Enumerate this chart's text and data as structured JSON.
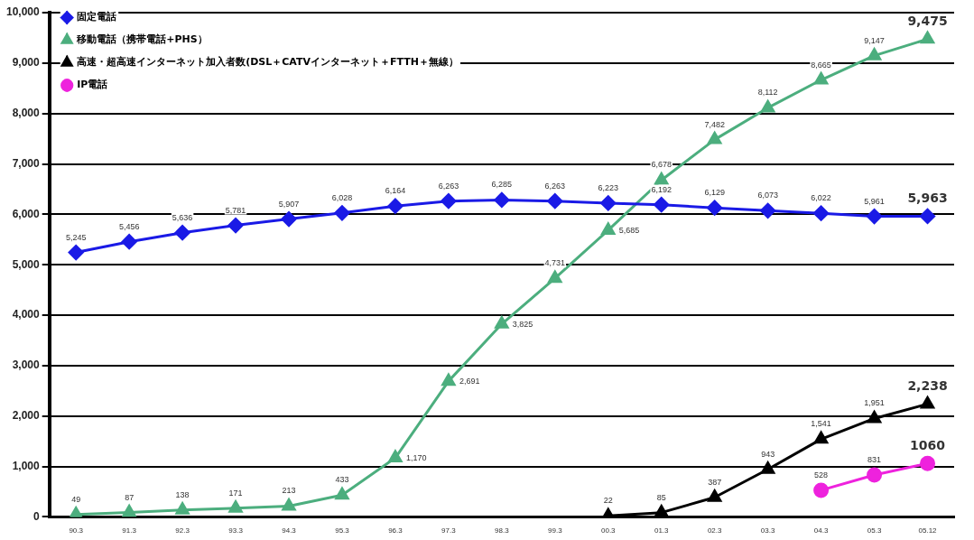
{
  "chart_data": {
    "type": "line",
    "categories": [
      "90.3",
      "91.3",
      "92.3",
      "93.3",
      "94.3",
      "95.3",
      "96.3",
      "97.3",
      "98.3",
      "99.3",
      "00.3",
      "01.3",
      "02.3",
      "03.3",
      "04.3",
      "05.3",
      "05.12"
    ],
    "series": [
      {
        "name": "固定電話",
        "color": "#1a1ae6",
        "marker": "diamond",
        "values": [
          5245,
          5456,
          5636,
          5781,
          5907,
          6028,
          6164,
          6263,
          6285,
          6263,
          6223,
          6192,
          6129,
          6073,
          6022,
          5961,
          5963
        ],
        "value_labels": [
          "5,245",
          "5,456",
          "5,636",
          "5,781",
          "5,907",
          "6,028",
          "6,164",
          "6,263",
          "6,285",
          "6,263",
          "6,223",
          "6,192",
          "6,129",
          "6,073",
          "6,022",
          "5,961",
          "5,963"
        ]
      },
      {
        "name": "移動電話（携帯電話+PHS）",
        "color": "#4cae7e",
        "marker": "triangle",
        "values": [
          49,
          87,
          138,
          171,
          213,
          433,
          1170,
          2691,
          3825,
          4731,
          5685,
          6678,
          7482,
          8112,
          8665,
          9147,
          9475
        ],
        "value_labels": [
          "49",
          "87",
          "138",
          "171",
          "213",
          "433",
          "1,170",
          "2,691",
          "3,825",
          "4,731",
          "5,685",
          "6,678",
          "7,482",
          "8,112",
          "8,665",
          "9,147",
          "9,475"
        ]
      },
      {
        "name": "高速・超高速インターネット加入者数(DSL＋CATVインターネット＋FTTH＋無線）",
        "color": "#000000",
        "marker": "triangle",
        "values": [
          null,
          null,
          null,
          null,
          null,
          null,
          null,
          null,
          null,
          null,
          22,
          85,
          387,
          943,
          1541,
          1951,
          2238
        ],
        "value_labels": [
          null,
          null,
          null,
          null,
          null,
          null,
          null,
          null,
          null,
          null,
          "22",
          "85",
          "387",
          "943",
          "1,541",
          "1,951",
          "2,238"
        ]
      },
      {
        "name": "IP電話",
        "color": "#ee22dd",
        "marker": "circle",
        "values": [
          null,
          null,
          null,
          null,
          null,
          null,
          null,
          null,
          null,
          null,
          null,
          null,
          null,
          null,
          528,
          831,
          1060
        ],
        "value_labels": [
          null,
          null,
          null,
          null,
          null,
          null,
          null,
          null,
          null,
          null,
          null,
          null,
          null,
          null,
          "528",
          "831",
          "1060"
        ]
      }
    ],
    "ylim": [
      0,
      10000
    ],
    "yticks": [
      0,
      {
        "value": 1000,
        "label": "1,000"
      },
      {
        "value": 2000,
        "label": "2,000"
      },
      {
        "value": 3000,
        "label": "3,000"
      },
      {
        "value": 4000,
        "label": "4,000"
      },
      {
        "value": 5000,
        "label": "5,000"
      },
      {
        "value": 6000,
        "label": "6,000"
      },
      {
        "value": 7000,
        "label": "7,000"
      },
      {
        "value": 8000,
        "label": "8,000"
      },
      {
        "value": 9000,
        "label": "9,000"
      },
      {
        "value": 10000,
        "label": "10,000"
      }
    ],
    "grid": "y",
    "legend": "top left",
    "line_style": "solid"
  }
}
